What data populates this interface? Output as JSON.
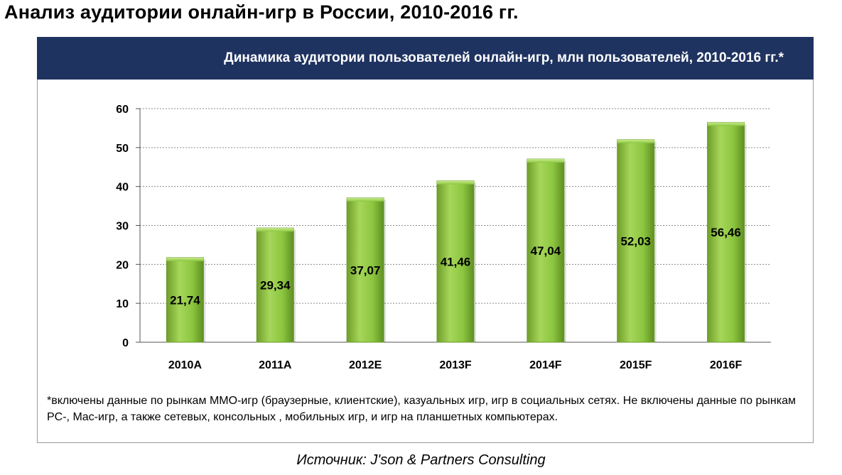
{
  "page": {
    "title": "Анализ аудитории онлайн-игр в России, 2010-2016 гг.",
    "source": "Источник: J'son & Partners Consulting"
  },
  "panel": {
    "header": "Динамика аудитории пользователей онлайн-игр, млн пользователей, 2010-2016 гг.*",
    "header_color": "#1f3361",
    "footnote": "*включены данные по рынкам ММО-игр (браузерные, клиентские), казуальных игр, игр в социальных сетях. Не включены данные по рынкам PC-, Mac-игр, а также сетевых, консольных , мобильных игр, и игр на планшетных компьютерах."
  },
  "chart_data": {
    "type": "bar",
    "categories": [
      "2010A",
      "2011A",
      "2012E",
      "2013F",
      "2014F",
      "2015F",
      "2016F"
    ],
    "values": [
      21.74,
      29.34,
      37.07,
      41.46,
      47.04,
      52.03,
      56.46
    ],
    "value_labels": [
      "21,74",
      "29,34",
      "37,07",
      "41,46",
      "47,04",
      "52,03",
      "56,46"
    ],
    "ylim": [
      0,
      60
    ],
    "yticks": [
      "0",
      "10",
      "20",
      "30",
      "40",
      "50",
      "60"
    ],
    "grid": true,
    "legend": "none",
    "bar_color": "#8cc63f",
    "bar_color_dark": "#5f8f22"
  }
}
